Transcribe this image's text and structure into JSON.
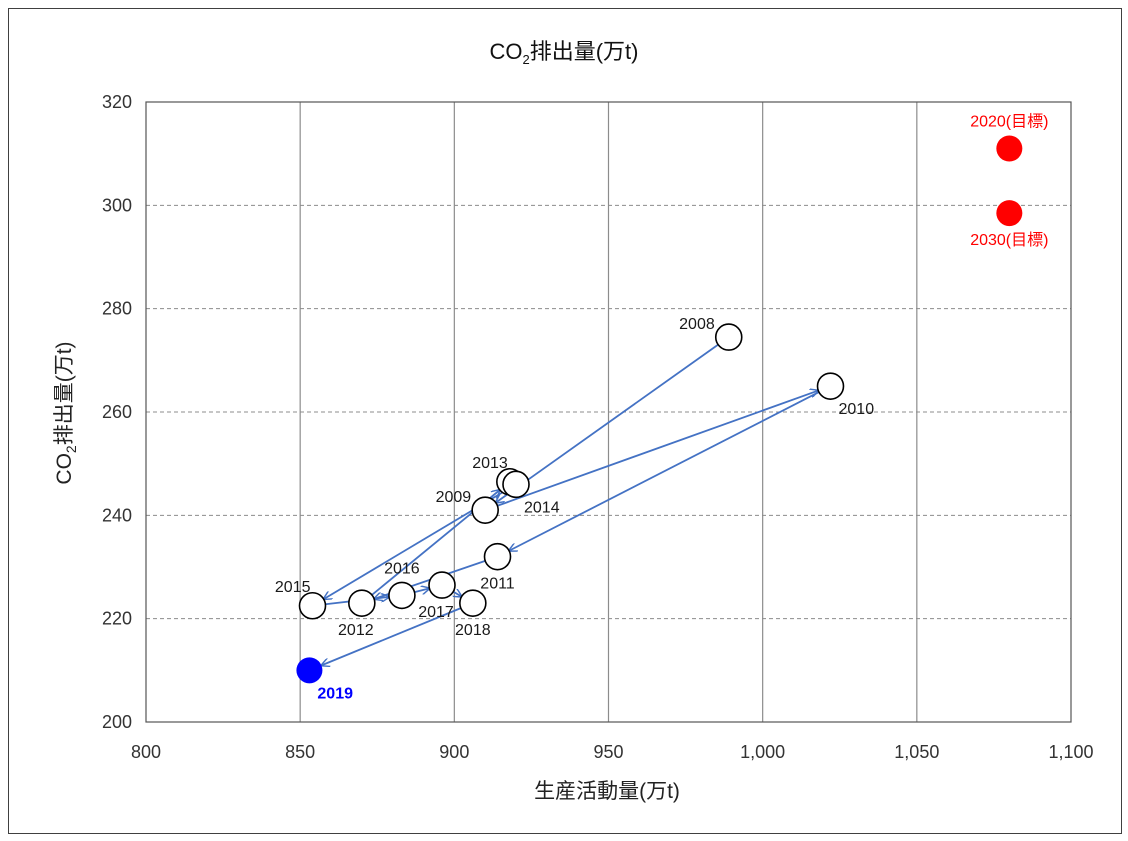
{
  "chart_data": {
    "type": "scatter",
    "title": {
      "main": "CO",
      "sub": "2",
      "rest": "排出量(万t)"
    },
    "xlabel": "生産活動量(万t)",
    "ylabel": {
      "main": "CO",
      "sub": "2",
      "rest": "排出量(万t)"
    },
    "xlim": [
      800,
      1100
    ],
    "ylim": [
      200,
      320
    ],
    "x_ticks": [
      800,
      850,
      900,
      950,
      1000,
      1050,
      1100
    ],
    "x_tick_labels": [
      "800",
      "850",
      "900",
      "950",
      "1,000",
      "1,050",
      "1,100"
    ],
    "y_ticks": [
      200,
      220,
      240,
      260,
      280,
      300,
      320
    ],
    "y_tick_labels": [
      "200",
      "220",
      "240",
      "260",
      "280",
      "300",
      "320"
    ],
    "grid": {
      "x": "solid",
      "y": "dashed"
    },
    "colors": {
      "history": "#ffffff",
      "history_stroke": "#000000",
      "current": "#0000ff",
      "target": "#ff0000",
      "arrow": "#4472c4"
    },
    "points": [
      {
        "label": "2008",
        "x": 989,
        "y": 274.5,
        "kind": "history",
        "label_pos": "left"
      },
      {
        "label": "2009",
        "x": 910,
        "y": 241,
        "kind": "history",
        "label_pos": "left"
      },
      {
        "label": "2010",
        "x": 1022,
        "y": 265,
        "kind": "history",
        "label_pos": "below-right"
      },
      {
        "label": "2011",
        "x": 914,
        "y": 232,
        "kind": "history",
        "label_pos": "below"
      },
      {
        "label": "2012",
        "x": 870,
        "y": 223,
        "kind": "history",
        "label_pos": "below-left"
      },
      {
        "label": "2013",
        "x": 918,
        "y": 246.5,
        "kind": "history",
        "label_pos": "above-left"
      },
      {
        "label": "2014",
        "x": 920,
        "y": 246,
        "kind": "history",
        "label_pos": "below-right"
      },
      {
        "label": "2015",
        "x": 854,
        "y": 222.5,
        "kind": "history",
        "label_pos": "above-left"
      },
      {
        "label": "2016",
        "x": 883,
        "y": 224.5,
        "kind": "history",
        "label_pos": "above"
      },
      {
        "label": "2017",
        "x": 896,
        "y": 226.5,
        "kind": "history",
        "label_pos": "below-left"
      },
      {
        "label": "2018",
        "x": 906,
        "y": 223,
        "kind": "history",
        "label_pos": "below"
      },
      {
        "label": "2019",
        "x": 853,
        "y": 210,
        "kind": "current",
        "label_pos": "below-right"
      },
      {
        "label": "2020(目標)",
        "x": 1080,
        "y": 311,
        "kind": "target",
        "label_pos": "above"
      },
      {
        "label": "2030(目標)",
        "x": 1080,
        "y": 298.5,
        "kind": "target",
        "label_pos": "below"
      }
    ],
    "trajectory": [
      "2008",
      "2009",
      "2010",
      "2011",
      "2012",
      "2013",
      "2014",
      "2015",
      "2016",
      "2017",
      "2018",
      "2019"
    ]
  }
}
